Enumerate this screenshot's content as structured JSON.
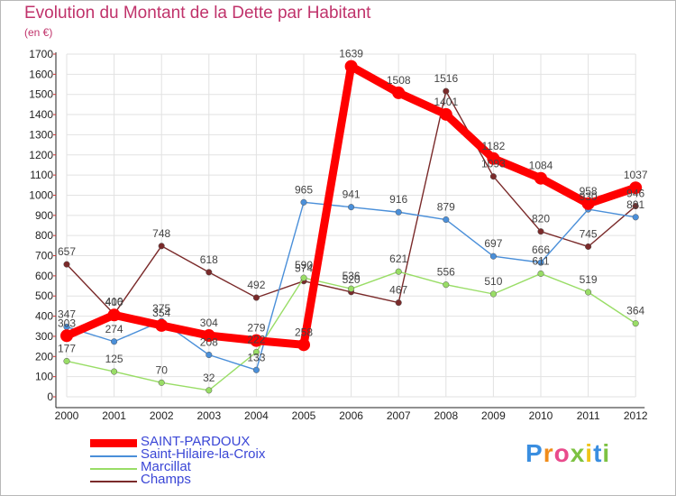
{
  "chart_data": {
    "type": "line",
    "title": "Evolution du Montant de la Dette par Habitant",
    "unit": "(en €)",
    "xlabel": "",
    "ylabel": "",
    "categories": [
      "2000",
      "2001",
      "2002",
      "2003",
      "2004",
      "2005",
      "2006",
      "2007",
      "2008",
      "2009",
      "2010",
      "2011",
      "2012"
    ],
    "ylim": [
      0,
      1700
    ],
    "yticks": [
      0,
      100,
      200,
      300,
      400,
      500,
      600,
      700,
      800,
      900,
      1000,
      1100,
      1200,
      1300,
      1400,
      1500,
      1600,
      1700
    ],
    "grid": true,
    "series": [
      {
        "name": "SAINT-PARDOUX",
        "color": "#ff0000",
        "values": [
          303,
          406,
          354,
          304,
          279,
          258,
          1639,
          1508,
          1401,
          1182,
          1084,
          958,
          1037
        ]
      },
      {
        "name": "Saint-Hilaire-la-Croix",
        "color": "#4a8fd9",
        "values": [
          347,
          274,
          375,
          208,
          133,
          965,
          941,
          916,
          879,
          697,
          666,
          930,
          891
        ]
      },
      {
        "name": "Marcillat",
        "color": "#99dd66",
        "values": [
          177,
          125,
          70,
          32,
          222,
          590,
          536,
          621,
          556,
          510,
          611,
          519,
          364
        ]
      },
      {
        "name": "Champs",
        "color": "#7a2a2a",
        "values": [
          657,
          410,
          748,
          618,
          492,
          574,
          520,
          467,
          1516,
          1093,
          820,
          745,
          946
        ]
      }
    ]
  },
  "brand": {
    "text": "Proxiti",
    "letter_colors": [
      "#3a8ee0",
      "#f08c1a",
      "#e94b8c",
      "#7dc242",
      "#f0c419",
      "#3a8ee0",
      "#7dc242"
    ]
  }
}
